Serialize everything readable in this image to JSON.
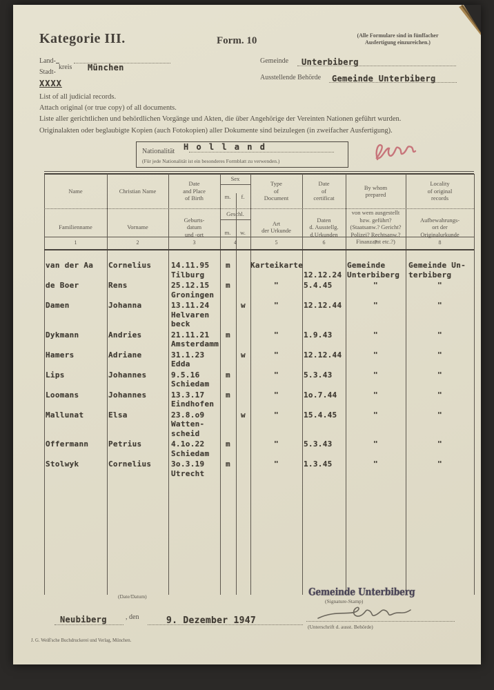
{
  "header": {
    "category": "Kategorie III.",
    "form_no": "Form. 10",
    "copies_note": "(Alle Formulare sind in fünffacher\nAusfertigung einzureichen.)",
    "land_label": "Land-",
    "stadt_label": "Stadt-",
    "kreis_label": "kreis",
    "kreis_value": "München",
    "strikeout": "XXXX",
    "gemeinde_label": "Gemeinde",
    "gemeinde_value": "Unterbiberg",
    "behoerde_label": "Ausstellende Behörde",
    "behoerde_value": "Gemeinde Unterbiberg"
  },
  "instructions": [
    "List of all judicial records.",
    "Attach  original (or true copy) of all documents.",
    "Liste aller gerichtlichen und behördlichen Vorgänge und Akten, die über Angehörige der Vereinten Nationen geführt wurden.",
    "Originalakten oder beglaubigte Kopien (auch Fotokopien) aller Dokumente sind beizulegen (in zweifacher Ausfertigung)."
  ],
  "nationality": {
    "label": "Nationalität",
    "value": "H o l l a n d",
    "note": "(Für jede Nationalität ist ein besonderes Formblatt zu verwenden.)"
  },
  "table": {
    "columns": [
      {
        "en": "Name",
        "de": "Familienname",
        "num": "1"
      },
      {
        "en": "Christian Name",
        "de": "Vorname",
        "num": "2"
      },
      {
        "en": "Date\nand Place\nof Birth",
        "de": "Geburts-\ndatum\nund -ort",
        "num": "3"
      },
      {
        "en": "Sex",
        "de": "Geschl.",
        "sub_en": [
          "m.",
          "f."
        ],
        "sub_de": [
          "m.",
          "w."
        ],
        "num": "4"
      },
      {
        "en": "Type\nof\nDocument",
        "de": "Art\nder Urkunde",
        "num": "5"
      },
      {
        "en": "Date\nof\ncertificat",
        "de": "Daten\nd. Ausstellg.\nd.Urkunden",
        "num": "6"
      },
      {
        "en": "By whom\nprepared",
        "de": "von wem ausgestellt\nbzw. geführt?\n(Staatsanw.? Gericht?\nPolizei? Rechtsanw.?\nFinanzamt etc.?)",
        "num": "7"
      },
      {
        "en": "Locality\nof original\nrecords",
        "de": "Aufbewahrungs-\nort der\nOriginalurkunde",
        "num": "8"
      }
    ],
    "rows": [
      {
        "name": "van der Aa",
        "vorname": "Cornelius",
        "birth": "14.11.95\nTilburg",
        "sex": "m",
        "doc": "Karteikarte",
        "date": "\n12.12.24",
        "by": "Gemeinde\nUnterbiberg",
        "loc": "Gemeinde Un-\nterbiberg"
      },
      {
        "name": "de Boer",
        "vorname": "Rens",
        "birth": "25.12.15\nGroningen",
        "sex": "m",
        "doc": "\"",
        "date": "5.4.45",
        "by": "\"",
        "loc": "\""
      },
      {
        "name": "Damen",
        "vorname": "Johanna",
        "birth": "13.11.24\nHelvaren\nbeck",
        "sex": "w",
        "doc": "\"",
        "date": "12.12.44",
        "by": "\"",
        "loc": "\""
      },
      {
        "name": "Dykmann",
        "vorname": "Andries",
        "birth": "21.11.21\nAmsterdamm",
        "sex": "m",
        "doc": "\"",
        "date": "1.9.43",
        "by": "\"",
        "loc": "\""
      },
      {
        "name": "Hamers",
        "vorname": "Adriane",
        "birth": "31.1.23\nEdda",
        "sex": "w",
        "doc": "\"",
        "date": "12.12.44",
        "by": "\"",
        "loc": "\""
      },
      {
        "name": "Lips",
        "vorname": "Johannes",
        "birth": "9.5.16\nSchiedam",
        "sex": "m",
        "doc": "\"",
        "date": "5.3.43",
        "by": "\"",
        "loc": "\""
      },
      {
        "name": "Loomans",
        "vorname": "Johannes",
        "birth": "13.3.17\nEindhofen",
        "sex": "m",
        "doc": "\"",
        "date": "1o.7.44",
        "by": "\"",
        "loc": "\""
      },
      {
        "name": "Mallunat",
        "vorname": "Elsa",
        "birth": "23.8.o9\nWatten-\nscheid",
        "sex": "w",
        "doc": "\"",
        "date": "15.4.45",
        "by": "\"",
        "loc": "\""
      },
      {
        "name": "Offermann",
        "vorname": "Petrius",
        "birth": "4.1o.22\nSchiedam",
        "sex": "m",
        "doc": "\"",
        "date": "5.3.43",
        "by": "\"",
        "loc": "\""
      },
      {
        "name": "Stolwyk",
        "vorname": "Cornelius",
        "birth": "3o.3.19\nUtrecht",
        "sex": "m",
        "doc": "\"",
        "date": "1.3.45",
        "by": "\"",
        "loc": "\""
      }
    ]
  },
  "footer": {
    "date_datum_label": "(Date/Datum)",
    "place_value": "Neubiberg",
    "den_label": ", den",
    "date_value": "9. Dezember 1947",
    "stamp_text": "Gemeinde Unterbiberg",
    "signature_stamp_label": "(Signature-Stamp)",
    "unterschrift_label": "(Unterschrift d. ausst. Behörde)",
    "printer_line": "J. G. Weiß'sche Buchdruckerei und Verlag, München."
  }
}
